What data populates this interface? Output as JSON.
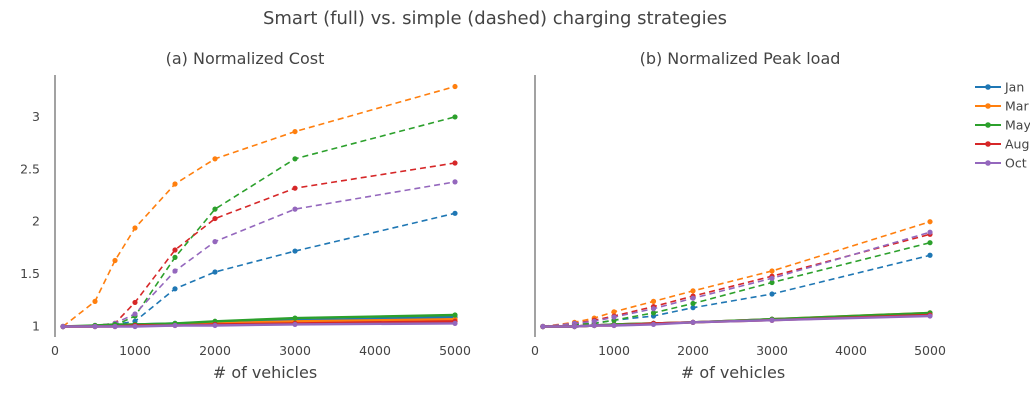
{
  "figure": {
    "title": "Smart (full) vs. simple (dashed) charging strategies"
  },
  "legend": {
    "placement": "right",
    "entries": [
      "Jan",
      "Mar",
      "May",
      "Aug",
      "Oct"
    ]
  },
  "colors": {
    "Jan": "#1f77b4",
    "Mar": "#ff7f0e",
    "May": "#2ca02c",
    "Aug": "#d62728",
    "Oct": "#9467bd",
    "axis": "#444444",
    "zero_line": "#444444"
  },
  "chart_data": [
    {
      "type": "line",
      "title": "(a) Normalized Cost",
      "xlabel": "# of vehicles",
      "ylabel": "",
      "xlim": [
        0,
        5000
      ],
      "ylim": [
        0.9,
        3.4
      ],
      "grid": false,
      "xticks": [
        0,
        1000,
        2000,
        3000,
        4000,
        5000
      ],
      "yticks": [
        1,
        1.5,
        2,
        2.5,
        3
      ],
      "x": [
        100,
        500,
        750,
        1000,
        1500,
        2000,
        3000,
        5000
      ],
      "series": [
        {
          "name": "Jan",
          "style": "dashed",
          "values": [
            1.0,
            1.01,
            1.02,
            1.05,
            1.36,
            1.52,
            1.72,
            2.08
          ]
        },
        {
          "name": "Mar",
          "style": "dashed",
          "values": [
            1.0,
            1.24,
            1.63,
            1.94,
            2.36,
            2.6,
            2.86,
            3.29
          ]
        },
        {
          "name": "May",
          "style": "dashed",
          "values": [
            1.0,
            1.01,
            1.01,
            1.1,
            1.66,
            2.12,
            2.6,
            3.0
          ]
        },
        {
          "name": "Aug",
          "style": "dashed",
          "values": [
            1.0,
            1.01,
            1.03,
            1.23,
            1.73,
            2.03,
            2.32,
            2.56
          ]
        },
        {
          "name": "Oct",
          "style": "dashed",
          "values": [
            1.0,
            1.01,
            1.03,
            1.12,
            1.53,
            1.81,
            2.12,
            2.38
          ]
        },
        {
          "name": "Jan",
          "style": "solid",
          "values": [
            1.0,
            1.0,
            1.01,
            1.02,
            1.03,
            1.04,
            1.06,
            1.09
          ]
        },
        {
          "name": "Mar",
          "style": "solid",
          "values": [
            1.0,
            1.0,
            1.01,
            1.01,
            1.02,
            1.03,
            1.05,
            1.07
          ]
        },
        {
          "name": "May",
          "style": "solid",
          "values": [
            1.0,
            1.01,
            1.02,
            1.02,
            1.03,
            1.05,
            1.08,
            1.11
          ]
        },
        {
          "name": "Aug",
          "style": "solid",
          "values": [
            1.0,
            1.0,
            1.0,
            1.01,
            1.01,
            1.02,
            1.03,
            1.05
          ]
        },
        {
          "name": "Oct",
          "style": "solid",
          "values": [
            1.0,
            1.0,
            1.0,
            1.0,
            1.01,
            1.01,
            1.02,
            1.03
          ]
        }
      ]
    },
    {
      "type": "line",
      "title": "(b) Normalized Peak load",
      "xlabel": "# of vehicles",
      "ylabel": "",
      "xlim": [
        0,
        5000
      ],
      "ylim": [
        0.9,
        3.4
      ],
      "grid": false,
      "xticks": [
        0,
        1000,
        2000,
        3000,
        4000,
        5000
      ],
      "yticks": [],
      "x": [
        100,
        500,
        750,
        1000,
        1500,
        2000,
        3000,
        5000
      ],
      "series": [
        {
          "name": "Jan",
          "style": "dashed",
          "values": [
            1.0,
            1.02,
            1.03,
            1.06,
            1.1,
            1.18,
            1.31,
            1.68
          ]
        },
        {
          "name": "Mar",
          "style": "dashed",
          "values": [
            1.0,
            1.04,
            1.08,
            1.14,
            1.24,
            1.34,
            1.53,
            2.0
          ]
        },
        {
          "name": "May",
          "style": "dashed",
          "values": [
            1.0,
            1.02,
            1.03,
            1.06,
            1.13,
            1.22,
            1.42,
            1.8
          ]
        },
        {
          "name": "Aug",
          "style": "dashed",
          "values": [
            1.0,
            1.03,
            1.06,
            1.1,
            1.19,
            1.29,
            1.48,
            1.88
          ]
        },
        {
          "name": "Oct",
          "style": "dashed",
          "values": [
            1.0,
            1.03,
            1.05,
            1.09,
            1.17,
            1.27,
            1.46,
            1.9
          ]
        },
        {
          "name": "Jan",
          "style": "solid",
          "values": [
            1.0,
            1.0,
            1.01,
            1.02,
            1.03,
            1.04,
            1.07,
            1.11
          ]
        },
        {
          "name": "Mar",
          "style": "solid",
          "values": [
            1.0,
            1.0,
            1.01,
            1.02,
            1.03,
            1.04,
            1.07,
            1.13
          ]
        },
        {
          "name": "May",
          "style": "solid",
          "values": [
            1.0,
            1.0,
            1.01,
            1.02,
            1.03,
            1.04,
            1.07,
            1.13
          ]
        },
        {
          "name": "Aug",
          "style": "solid",
          "values": [
            1.0,
            1.0,
            1.01,
            1.01,
            1.03,
            1.04,
            1.06,
            1.11
          ]
        },
        {
          "name": "Oct",
          "style": "solid",
          "values": [
            1.0,
            1.0,
            1.01,
            1.01,
            1.02,
            1.04,
            1.06,
            1.1
          ]
        }
      ]
    }
  ]
}
